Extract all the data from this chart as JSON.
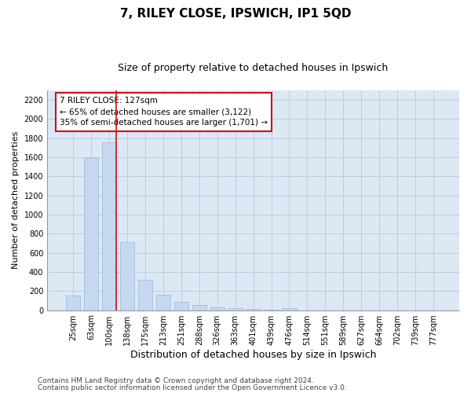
{
  "title1": "7, RILEY CLOSE, IPSWICH, IP1 5QD",
  "title2": "Size of property relative to detached houses in Ipswich",
  "xlabel": "Distribution of detached houses by size in Ipswich",
  "ylabel": "Number of detached properties",
  "categories": [
    "25sqm",
    "63sqm",
    "100sqm",
    "138sqm",
    "175sqm",
    "213sqm",
    "251sqm",
    "288sqm",
    "326sqm",
    "363sqm",
    "401sqm",
    "439sqm",
    "476sqm",
    "514sqm",
    "551sqm",
    "589sqm",
    "627sqm",
    "664sqm",
    "702sqm",
    "739sqm",
    "777sqm"
  ],
  "values": [
    155,
    1590,
    1760,
    710,
    315,
    160,
    88,
    55,
    30,
    20,
    15,
    5,
    20,
    0,
    0,
    0,
    0,
    0,
    0,
    0,
    0
  ],
  "bar_color": "#c5d8ef",
  "bar_edge_color": "#9ab8d8",
  "grid_color": "#b8c8dc",
  "bg_color": "#dde8f5",
  "vline_color": "#cc1111",
  "annotation_text": "7 RILEY CLOSE: 127sqm\n← 65% of detached houses are smaller (3,122)\n35% of semi-detached houses are larger (1,701) →",
  "annotation_box_color": "#cc1111",
  "annotation_bg": "#ffffff",
  "ylim": [
    0,
    2300
  ],
  "yticks": [
    0,
    200,
    400,
    600,
    800,
    1000,
    1200,
    1400,
    1600,
    1800,
    2000,
    2200
  ],
  "footer1": "Contains HM Land Registry data © Crown copyright and database right 2024.",
  "footer2": "Contains public sector information licensed under the Open Government Licence v3.0.",
  "title1_fontsize": 11,
  "title2_fontsize": 9,
  "xlabel_fontsize": 9,
  "ylabel_fontsize": 8,
  "tick_fontsize": 7,
  "footer_fontsize": 6.5,
  "vline_bar_index": 2
}
